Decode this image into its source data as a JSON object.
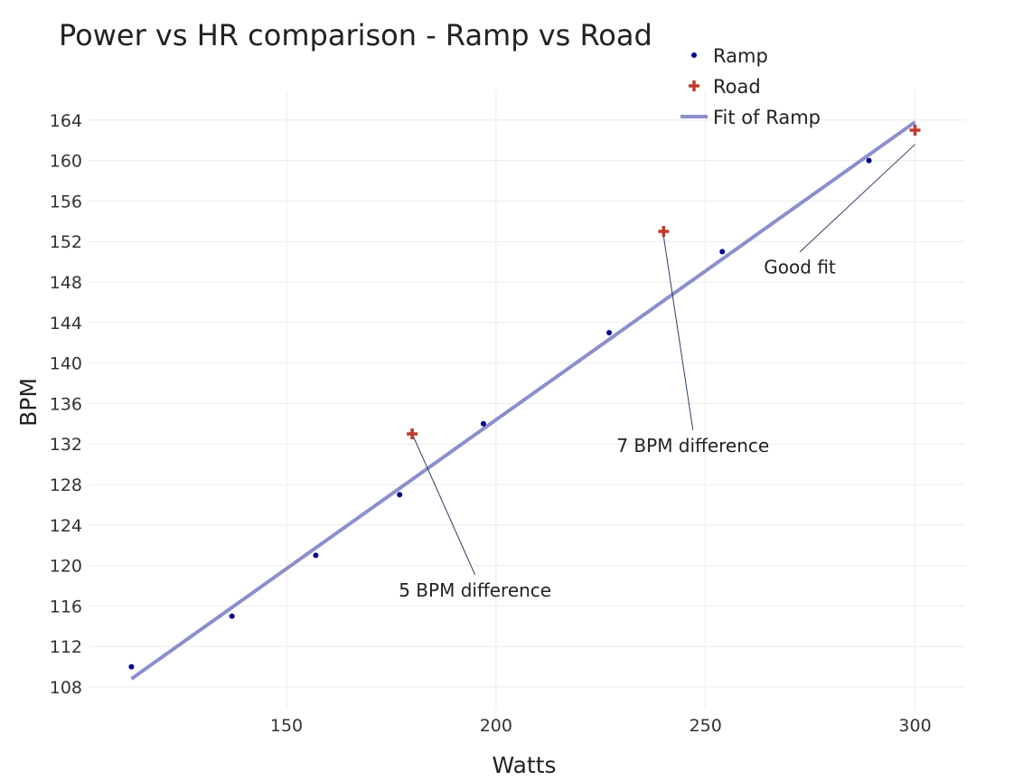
{
  "chart_data": {
    "type": "scatter",
    "title": "Power vs HR comparison - Ramp vs Road",
    "xlabel": "Watts",
    "ylabel": "BPM",
    "xlim": [
      102,
      312
    ],
    "ylim": [
      106,
      167
    ],
    "x_ticks": [
      150,
      200,
      250,
      300
    ],
    "y_ticks": [
      108,
      112,
      116,
      120,
      124,
      128,
      132,
      136,
      140,
      144,
      148,
      152,
      156,
      160,
      164
    ],
    "grid": true,
    "legend_position": "top-right",
    "series": [
      {
        "name": "Ramp",
        "kind": "points",
        "marker": "dot",
        "color": "#00008b",
        "x": [
          113,
          137,
          157,
          177,
          197,
          227,
          254,
          289
        ],
        "y": [
          110,
          115,
          121,
          127,
          134,
          143,
          151,
          160
        ]
      },
      {
        "name": "Road",
        "kind": "points",
        "marker": "cross",
        "color": "#c0392b",
        "x": [
          180,
          240,
          300
        ],
        "y": [
          133,
          153,
          163
        ]
      },
      {
        "name": "Fit of Ramp",
        "kind": "line",
        "color": "#8b8fcb",
        "x": [
          113,
          300
        ],
        "y": [
          108.8,
          163.8
        ]
      }
    ],
    "annotations": [
      {
        "text": "5 BPM difference",
        "x": 180,
        "y": 133,
        "text_x": 195,
        "text_y": 118
      },
      {
        "text": "7 BPM difference",
        "x": 240,
        "y": 152.5,
        "text_x": 247,
        "text_y": 132.3
      },
      {
        "text": "Good fit",
        "x": 300,
        "y": 161.6,
        "text_x": 272.5,
        "text_y": 149.9
      }
    ]
  }
}
